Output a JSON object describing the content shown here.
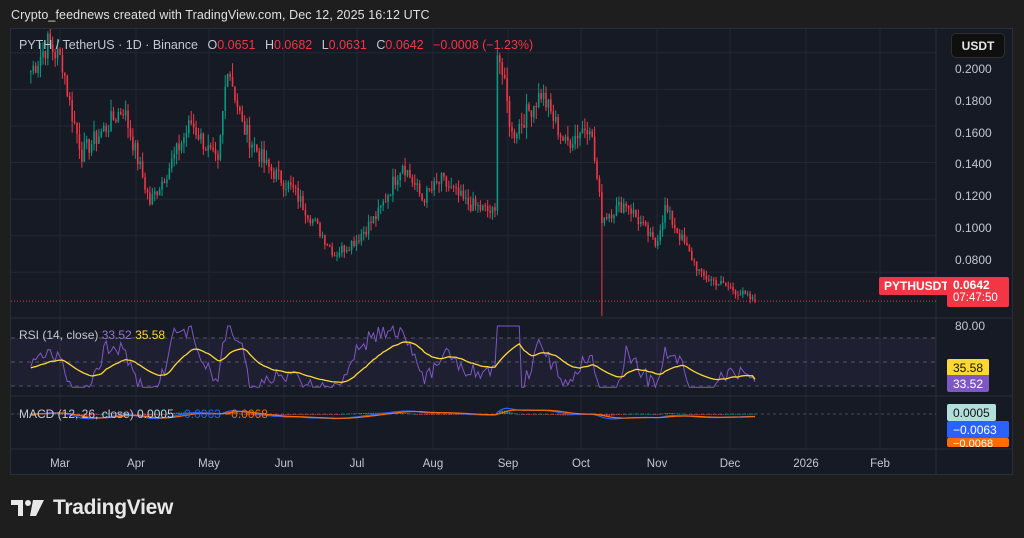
{
  "attribution": "Crypto_feednews created with TradingView.com, Dec 12, 2025 16:12 UTC",
  "legend": {
    "symbol": "PYTH / TetherUS · 1D · Binance",
    "o_label": "O",
    "o": "0.0651",
    "h_label": "H",
    "h": "0.0682",
    "l_label": "L",
    "l": "0.0631",
    "c_label": "C",
    "c": "0.0642",
    "change": "−0.0008 (−1.23%)"
  },
  "currency_button": "USDT",
  "price_axis": {
    "ticks": [
      "0.2000",
      "0.1800",
      "0.1600",
      "0.1400",
      "0.1200",
      "0.1000",
      "0.0800"
    ]
  },
  "last_price": {
    "symbol": "PYTHUSDT",
    "price": "0.0642",
    "countdown": "07:47:50"
  },
  "rsi": {
    "label": "RSI (14, close)",
    "value": "33.52",
    "ma_value": "35.58",
    "axis_label": "80.00",
    "rsi_color": "#7e57c2",
    "ma_color": "#fdd835"
  },
  "macd": {
    "label": "MACD (12, 26, close)",
    "histogram": "0.0005",
    "macd": "−0.0063",
    "signal": "−0.0068",
    "macd_color": "#2962ff",
    "signal_color": "#ff6d00",
    "hist_color": "#b2dfdb"
  },
  "time_axis": {
    "ticks": [
      "Mar",
      "Apr",
      "May",
      "Jun",
      "Jul",
      "Aug",
      "Sep",
      "Oct",
      "Nov",
      "Dec",
      "2026",
      "Feb"
    ]
  },
  "colors": {
    "up": "#089981",
    "down": "#f23645",
    "bg": "#161a25",
    "grid": "#232735"
  },
  "brand": {
    "name": "TradingView"
  },
  "chart_data": {
    "type": "candlestick",
    "title": "PYTH / TetherUS · 1D · Binance",
    "ylabel": "USDT",
    "ylim": [
      0.055,
      0.213
    ],
    "x_ticks": [
      "Mar",
      "Apr",
      "May",
      "Jun",
      "Jul",
      "Aug",
      "Sep",
      "Oct",
      "Nov",
      "Dec",
      "2026",
      "Feb"
    ],
    "y_ticks": [
      0.2,
      0.18,
      0.16,
      0.14,
      0.12,
      0.1,
      0.08
    ],
    "last": {
      "open": 0.0651,
      "high": 0.0682,
      "low": 0.0631,
      "close": 0.0642,
      "change": -0.0008,
      "change_pct": -1.23
    },
    "approx_close_path": [
      {
        "date": "2025-02-17",
        "close": 0.19
      },
      {
        "date": "2025-02-24",
        "close": 0.205
      },
      {
        "date": "2025-03-02",
        "close": 0.195
      },
      {
        "date": "2025-03-05",
        "close": 0.172
      },
      {
        "date": "2025-03-10",
        "close": 0.145
      },
      {
        "date": "2025-03-17",
        "close": 0.155
      },
      {
        "date": "2025-03-27",
        "close": 0.17
      },
      {
        "date": "2025-04-07",
        "close": 0.118
      },
      {
        "date": "2025-04-14",
        "close": 0.135
      },
      {
        "date": "2025-04-24",
        "close": 0.162
      },
      {
        "date": "2025-05-05",
        "close": 0.138
      },
      {
        "date": "2025-05-09",
        "close": 0.195
      },
      {
        "date": "2025-05-15",
        "close": 0.16
      },
      {
        "date": "2025-05-25",
        "close": 0.138
      },
      {
        "date": "2025-06-05",
        "close": 0.125
      },
      {
        "date": "2025-06-22",
        "close": 0.09
      },
      {
        "date": "2025-07-01",
        "close": 0.098
      },
      {
        "date": "2025-07-10",
        "close": 0.112
      },
      {
        "date": "2025-07-20",
        "close": 0.14
      },
      {
        "date": "2025-07-28",
        "close": 0.12
      },
      {
        "date": "2025-08-05",
        "close": 0.13
      },
      {
        "date": "2025-08-15",
        "close": 0.118
      },
      {
        "date": "2025-08-27",
        "close": 0.112
      },
      {
        "date": "2025-08-28",
        "close": 0.205
      },
      {
        "date": "2025-09-03",
        "close": 0.155
      },
      {
        "date": "2025-09-15",
        "close": 0.178
      },
      {
        "date": "2025-09-25",
        "close": 0.15
      },
      {
        "date": "2025-10-05",
        "close": 0.162
      },
      {
        "date": "2025-10-10",
        "close": 0.11
      },
      {
        "date": "2025-10-20",
        "close": 0.118
      },
      {
        "date": "2025-11-01",
        "close": 0.095
      },
      {
        "date": "2025-11-05",
        "close": 0.115
      },
      {
        "date": "2025-11-20",
        "close": 0.078
      },
      {
        "date": "2025-12-01",
        "close": 0.072
      },
      {
        "date": "2025-12-12",
        "close": 0.0642
      }
    ],
    "rsi_last": 33.52,
    "rsi_ma_last": 35.58,
    "macd_last": {
      "macd": -0.0063,
      "signal": -0.0068,
      "histogram": 0.0005
    }
  }
}
